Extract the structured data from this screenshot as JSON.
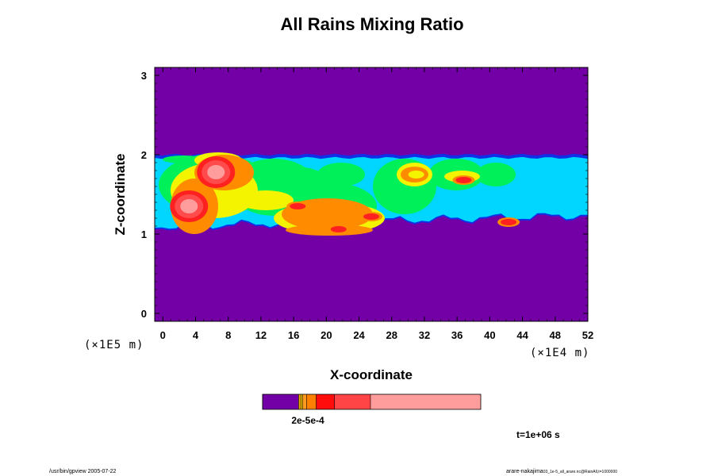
{
  "chart_data": {
    "type": "heatmap",
    "title": "All Rains Mixing Ratio",
    "xlabel": "X-coordinate",
    "ylabel": "Z-coordinate",
    "x_unit_label": "(×1E4 m)",
    "y_unit_label": "(×1E5 m)",
    "xlim": [
      -1,
      52
    ],
    "ylim": [
      -0.1,
      3.1
    ],
    "x_ticks": [
      "0",
      "4",
      "8",
      "12",
      "16",
      "20",
      "24",
      "28",
      "32",
      "36",
      "40",
      "44",
      "48",
      "52"
    ],
    "y_ticks": [
      "0",
      "1",
      "2",
      "3"
    ],
    "grid": false,
    "background_value_color": "#7300a6",
    "colors": {
      "purple": "#7300a6",
      "blue": "#1030e8",
      "cyan": "#00d6ff",
      "green": "#00f05a",
      "yellow": "#f4f400",
      "orange": "#ff8c00",
      "red": "#ff2020",
      "salmon": "#ff4b4b",
      "pink": "#ff9c9c"
    },
    "field_layer": {
      "z_bottom": 1.0,
      "z_top": 2.0,
      "x_range": [
        -1,
        52
      ]
    },
    "hotspots": [
      {
        "x": 6.5,
        "z": 1.78,
        "level": "pink"
      },
      {
        "x": 3.2,
        "z": 1.35,
        "level": "pink"
      },
      {
        "x": 16.5,
        "z": 1.35,
        "level": "red"
      },
      {
        "x": 21.5,
        "z": 1.06,
        "level": "red"
      },
      {
        "x": 25.5,
        "z": 1.22,
        "level": "red"
      },
      {
        "x": 42.3,
        "z": 1.15,
        "level": "red"
      },
      {
        "x": 36.8,
        "z": 1.68,
        "level": "red"
      },
      {
        "x": 31.0,
        "z": 1.75,
        "level": "yellow"
      }
    ],
    "colorbar": {
      "segments": [
        {
          "color": "#7300a6",
          "weight": 45
        },
        {
          "color": "#e0a000",
          "weight": 3
        },
        {
          "color": "#ffd000",
          "weight": 2
        },
        {
          "color": "#ff9a20",
          "weight": 5
        },
        {
          "color": "#ff8000",
          "weight": 12
        },
        {
          "color": "#ff0d0d",
          "weight": 23
        },
        {
          "color": "#ff4545",
          "weight": 45
        },
        {
          "color": "#ff9c9c",
          "weight": 138
        }
      ],
      "label": "2e-5e-4"
    },
    "time_label": "t=1e+06 s"
  },
  "footer": {
    "left": "/usr/bin/gpview 2005-07-22",
    "right_main": "arare-nakajima",
    "right_sub": "03_1e-5_all_arare.nc@RainAll,t=1000000"
  }
}
